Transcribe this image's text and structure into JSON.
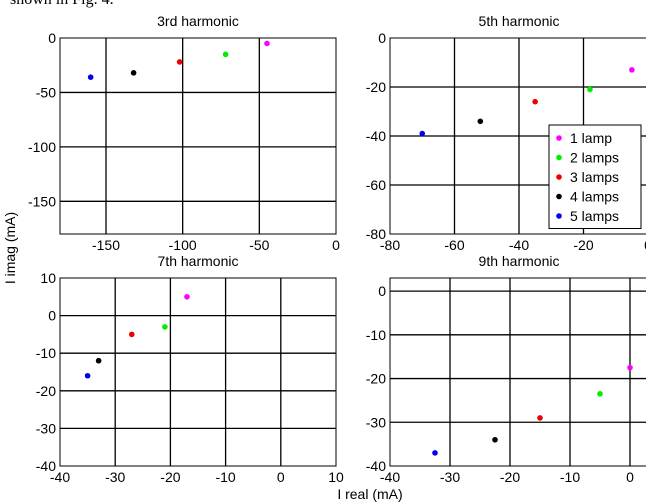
{
  "caption_fragment": "shown in Fig. 4.",
  "shared_ylabel": "I imag (mA)",
  "shared_xlabel": "I real (mA)",
  "legend_entries": [
    {
      "label": "1 lamp",
      "color": "#ff00ff"
    },
    {
      "label": "2 lamps",
      "color": "#00ee00"
    },
    {
      "label": "3 lamps",
      "color": "#ee0000"
    },
    {
      "label": "4 lamps",
      "color": "#000000"
    },
    {
      "label": "5 lamps",
      "color": "#0000ee"
    }
  ],
  "chart_data": [
    {
      "type": "scatter",
      "title": "3rd harmonic",
      "xlim": [
        -180,
        0
      ],
      "ylim": [
        -180,
        0
      ],
      "xticks": [
        -150,
        -100,
        -50,
        0
      ],
      "yticks": [
        0,
        -50,
        -100,
        -150
      ],
      "grid": true,
      "series": [
        {
          "name": "1 lamp",
          "color": "#ff00ff",
          "points": [
            [
              -45,
              -5
            ]
          ]
        },
        {
          "name": "2 lamps",
          "color": "#00ee00",
          "points": [
            [
              -72,
              -15
            ]
          ]
        },
        {
          "name": "3 lamps",
          "color": "#ee0000",
          "points": [
            [
              -102,
              -22
            ]
          ]
        },
        {
          "name": "4 lamps",
          "color": "#000000",
          "points": [
            [
              -132,
              -32
            ]
          ]
        },
        {
          "name": "5 lamps",
          "color": "#0000ee",
          "points": [
            [
              -160,
              -36
            ]
          ]
        }
      ]
    },
    {
      "type": "scatter",
      "title": "5th harmonic",
      "xlim": [
        -80,
        0
      ],
      "ylim": [
        -80,
        0
      ],
      "xticks": [
        -80,
        -60,
        -40,
        -20,
        0
      ],
      "yticks": [
        0,
        -20,
        -40,
        -60,
        -80
      ],
      "grid": true,
      "legend": "bottom-right",
      "series": [
        {
          "name": "1 lamp",
          "color": "#ff00ff",
          "points": [
            [
              -5,
              -13
            ]
          ]
        },
        {
          "name": "2 lamps",
          "color": "#00ee00",
          "points": [
            [
              -18,
              -21
            ]
          ]
        },
        {
          "name": "3 lamps",
          "color": "#ee0000",
          "points": [
            [
              -35,
              -26
            ]
          ]
        },
        {
          "name": "4 lamps",
          "color": "#000000",
          "points": [
            [
              -52,
              -34
            ]
          ]
        },
        {
          "name": "5 lamps",
          "color": "#0000ee",
          "points": [
            [
              -70,
              -39
            ]
          ]
        }
      ]
    },
    {
      "type": "scatter",
      "title": "7th harmonic",
      "xlim": [
        -40,
        10
      ],
      "ylim": [
        -40,
        10
      ],
      "xticks": [
        -40,
        -30,
        -20,
        -10,
        0,
        10
      ],
      "yticks": [
        10,
        0,
        -10,
        -20,
        -30,
        -40
      ],
      "grid": true,
      "series": [
        {
          "name": "1 lamp",
          "color": "#ff00ff",
          "points": [
            [
              -17,
              5
            ]
          ]
        },
        {
          "name": "2 lamps",
          "color": "#00ee00",
          "points": [
            [
              -21,
              -3
            ]
          ]
        },
        {
          "name": "3 lamps",
          "color": "#ee0000",
          "points": [
            [
              -27,
              -5
            ]
          ]
        },
        {
          "name": "4 lamps",
          "color": "#000000",
          "points": [
            [
              -33,
              -12
            ]
          ]
        },
        {
          "name": "5 lamps",
          "color": "#0000ee",
          "points": [
            [
              -35,
              -16
            ]
          ]
        }
      ]
    },
    {
      "type": "scatter",
      "title": "9th harmonic",
      "xlim": [
        -40,
        3
      ],
      "ylim": [
        -40,
        3
      ],
      "xticks": [
        -40,
        -30,
        -20,
        -10,
        0
      ],
      "yticks": [
        0,
        -10,
        -20,
        -30,
        -40
      ],
      "grid": true,
      "series": [
        {
          "name": "1 lamp",
          "color": "#ff00ff",
          "points": [
            [
              0,
              -17.5
            ]
          ]
        },
        {
          "name": "2 lamps",
          "color": "#00ee00",
          "points": [
            [
              -5,
              -23.5
            ]
          ]
        },
        {
          "name": "3 lamps",
          "color": "#ee0000",
          "points": [
            [
              -15,
              -29
            ]
          ]
        },
        {
          "name": "4 lamps",
          "color": "#000000",
          "points": [
            [
              -22.5,
              -34
            ]
          ]
        },
        {
          "name": "5 lamps",
          "color": "#0000ee",
          "points": [
            [
              -32.5,
              -37
            ]
          ]
        }
      ]
    }
  ]
}
